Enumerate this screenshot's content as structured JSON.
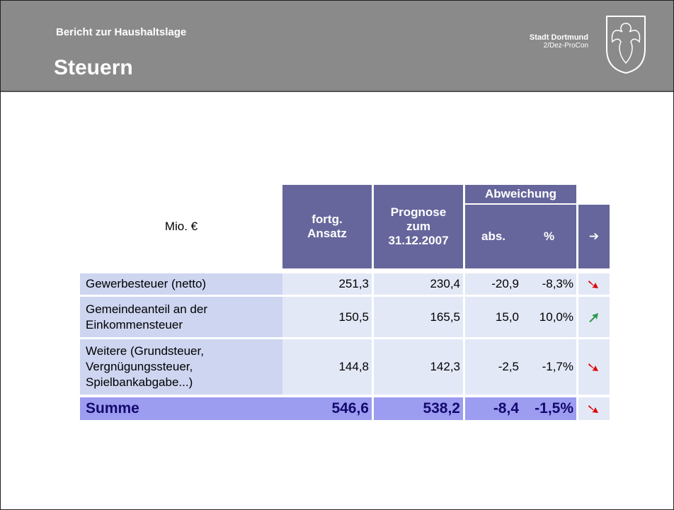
{
  "header": {
    "subtitle": "Bericht zur Haushaltslage",
    "title": "Steuern",
    "org": "Stadt Dortmund",
    "dept": "2/Dez-ProCon"
  },
  "table": {
    "unit": "Mio. €",
    "columns": [
      "fortg.\nAnsatz",
      "Prognose\nzum\n31.12.2007"
    ],
    "group": "Abweichung",
    "subcolumns": [
      "abs.",
      "%",
      "➔"
    ],
    "rows": [
      [
        "Gewerbesteuer (netto)",
        "251,3",
        "230,4",
        "-20,9",
        "-8,3%"
      ],
      [
        "Gemeindeanteil an der\nEinkommensteuer",
        "150,5",
        "165,5",
        "15,0",
        "10,0%"
      ],
      [
        "Weitere (Grundsteuer,\nVergnügungssteuer,\nSpielbankabgabe...)",
        "144,8",
        "142,3",
        "-2,5",
        "-1,7%"
      ]
    ],
    "total": [
      "Summe",
      "546,6",
      "538,2",
      "-8,4",
      "-1,5%"
    ]
  }
}
